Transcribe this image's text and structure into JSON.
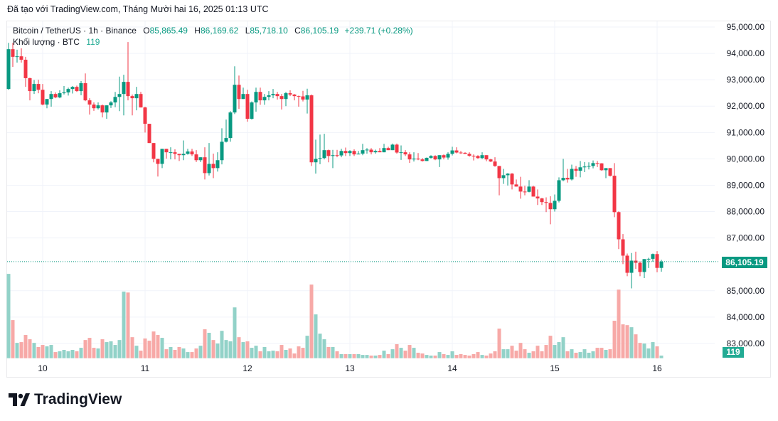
{
  "header": {
    "caption": "Đã tạo với TradingView.com, Tháng Mười hai 16, 2025 01:13 UTC"
  },
  "legend": {
    "symbol": "Bitcoin / TetherUS · 1h · Binance",
    "o_label": "O",
    "o": "85,865.49",
    "h_label": "H",
    "h": "86,169.62",
    "l_label": "L",
    "l": "85,718.10",
    "c_label": "C",
    "c": "86,105.19",
    "change": "+239.71 (+0.28%)",
    "volume_label": "Khối lượng · BTC",
    "volume_value": "119"
  },
  "price_label": "86,105.19",
  "volume_axis_label": "119",
  "logo_text": "TradingView",
  "colors": {
    "up": "#089981",
    "down": "#f23645",
    "vol_up": "#92d2c8",
    "vol_down": "#f7a9a7",
    "grid": "#f0f3fa",
    "last_price": "#089981"
  },
  "chart_data": {
    "type": "candlestick",
    "interval": "1h",
    "grid": true,
    "ylim": [
      82500,
      95000
    ],
    "y_ticks": [
      "95,000.00",
      "94,000.00",
      "93,000.00",
      "92,000.00",
      "91,000.00",
      "90,000.00",
      "89,000.00",
      "88,000.00",
      "87,000.00",
      "85,000.00",
      "84,000.00",
      "83,000.00"
    ],
    "y_tick_values": [
      95000,
      94000,
      93000,
      92000,
      91000,
      90000,
      89000,
      88000,
      87000,
      85000,
      84000,
      83000
    ],
    "x_ticks": [
      {
        "label": "10",
        "index": 8
      },
      {
        "label": "11",
        "index": 32
      },
      {
        "label": "12",
        "index": 56
      },
      {
        "label": "13",
        "index": 80
      },
      {
        "label": "14",
        "index": 104
      },
      {
        "label": "15",
        "index": 128
      },
      {
        "label": "16",
        "index": 152
      }
    ],
    "last_price": 86105.19,
    "candles": [
      [
        92650,
        94400,
        92620,
        94160
      ],
      [
        94160,
        94400,
        93490,
        93870
      ],
      [
        93870,
        94140,
        93650,
        93890
      ],
      [
        93890,
        94190,
        93650,
        93760
      ],
      [
        93760,
        93870,
        92730,
        93060
      ],
      [
        93060,
        93080,
        92220,
        92570
      ],
      [
        92570,
        92990,
        92460,
        92840
      ],
      [
        92840,
        93000,
        92490,
        92620
      ],
      [
        92620,
        92840,
        92030,
        92060
      ],
      [
        92060,
        92270,
        91920,
        92270
      ],
      [
        92270,
        92570,
        91980,
        92460
      ],
      [
        92460,
        92520,
        92300,
        92330
      ],
      [
        92330,
        92600,
        92300,
        92490
      ],
      [
        92490,
        92760,
        92440,
        92520
      ],
      [
        92520,
        92700,
        92400,
        92650
      ],
      [
        92650,
        92760,
        92480,
        92730
      ],
      [
        92730,
        92780,
        92540,
        92570
      ],
      [
        92570,
        92950,
        92410,
        92870
      ],
      [
        92870,
        93240,
        92190,
        92220
      ],
      [
        92220,
        92300,
        91680,
        92060
      ],
      [
        92060,
        92140,
        91820,
        91920
      ],
      [
        91920,
        92140,
        91870,
        92030
      ],
      [
        92030,
        92060,
        91570,
        91760
      ],
      [
        91760,
        92030,
        91520,
        92030
      ],
      [
        92030,
        92190,
        91930,
        92140
      ],
      [
        92140,
        92540,
        91960,
        92350
      ],
      [
        92350,
        93120,
        91810,
        92460
      ],
      [
        92460,
        93190,
        91650,
        92920
      ],
      [
        92920,
        94430,
        92220,
        92380
      ],
      [
        92380,
        92440,
        91650,
        92300
      ],
      [
        92300,
        92730,
        91840,
        92460
      ],
      [
        92460,
        92540,
        91950,
        91950
      ],
      [
        91950,
        91980,
        91000,
        91330
      ],
      [
        91330,
        91330,
        90600,
        90600
      ],
      [
        90600,
        90600,
        89870,
        90000
      ],
      [
        90000,
        90000,
        89330,
        89810
      ],
      [
        89810,
        90380,
        89650,
        90380
      ],
      [
        90380,
        90380,
        90010,
        90250
      ],
      [
        90250,
        90440,
        89980,
        90250
      ],
      [
        90250,
        90360,
        89980,
        90190
      ],
      [
        90190,
        90190,
        89920,
        90140
      ],
      [
        90140,
        90700,
        89950,
        90190
      ],
      [
        90190,
        90380,
        90160,
        90280
      ],
      [
        90280,
        90380,
        90110,
        90170
      ],
      [
        90170,
        90330,
        89880,
        89950
      ],
      [
        89950,
        90060,
        89880,
        90060
      ],
      [
        90060,
        90440,
        89220,
        89460
      ],
      [
        89460,
        90600,
        89370,
        89810
      ],
      [
        89810,
        90200,
        89270,
        89650
      ],
      [
        89650,
        90250,
        89520,
        89950
      ],
      [
        89950,
        91160,
        89790,
        90650
      ],
      [
        90650,
        91490,
        90620,
        90790
      ],
      [
        90790,
        91810,
        90650,
        91760
      ],
      [
        91760,
        93510,
        91700,
        92810
      ],
      [
        92810,
        93160,
        91900,
        92270
      ],
      [
        92270,
        92700,
        92270,
        92460
      ],
      [
        92460,
        92620,
        91410,
        91520
      ],
      [
        91520,
        92180,
        91490,
        92140
      ],
      [
        92140,
        92700,
        91790,
        92540
      ],
      [
        92540,
        92700,
        92050,
        92220
      ],
      [
        92220,
        92460,
        92050,
        92350
      ],
      [
        92350,
        92570,
        92220,
        92410
      ],
      [
        92410,
        92650,
        92300,
        92460
      ],
      [
        92460,
        92540,
        92250,
        92380
      ],
      [
        92380,
        92460,
        91870,
        92270
      ],
      [
        92270,
        92540,
        92000,
        92490
      ],
      [
        92490,
        92600,
        92380,
        92440
      ],
      [
        92440,
        92460,
        92220,
        92380
      ],
      [
        92380,
        92400,
        91980,
        92370
      ],
      [
        92370,
        92580,
        92180,
        92250
      ],
      [
        92250,
        92660,
        91720,
        92410
      ],
      [
        92410,
        92440,
        89730,
        89870
      ],
      [
        89870,
        90730,
        89440,
        90000
      ],
      [
        90000,
        90920,
        89800,
        90030
      ],
      [
        90030,
        90950,
        89980,
        90330
      ],
      [
        90330,
        90350,
        89870,
        90110
      ],
      [
        90110,
        90340,
        89650,
        90140
      ],
      [
        90140,
        90340,
        90060,
        90130
      ],
      [
        90130,
        90380,
        90060,
        90300
      ],
      [
        90300,
        90430,
        90110,
        90220
      ],
      [
        90220,
        90330,
        90110,
        90300
      ],
      [
        90300,
        90360,
        90110,
        90170
      ],
      [
        90170,
        90300,
        90170,
        90200
      ],
      [
        90200,
        90570,
        90140,
        90330
      ],
      [
        90330,
        90410,
        90200,
        90350
      ],
      [
        90350,
        90410,
        90170,
        90250
      ],
      [
        90250,
        90350,
        90200,
        90300
      ],
      [
        90300,
        90410,
        90250,
        90250
      ],
      [
        90250,
        90570,
        90250,
        90410
      ],
      [
        90410,
        90460,
        90330,
        90330
      ],
      [
        90330,
        90580,
        90330,
        90540
      ],
      [
        90540,
        90580,
        90200,
        90240
      ],
      [
        90240,
        90510,
        89960,
        90250
      ],
      [
        90250,
        90330,
        90110,
        90170
      ],
      [
        90170,
        90250,
        89850,
        89980
      ],
      [
        89980,
        90250,
        89900,
        90010
      ],
      [
        90010,
        90220,
        89950,
        89980
      ],
      [
        89980,
        90030,
        89900,
        89920
      ],
      [
        89920,
        90050,
        89920,
        90040
      ],
      [
        90040,
        90140,
        90010,
        90110
      ],
      [
        90110,
        90140,
        89950,
        89980
      ],
      [
        89980,
        90140,
        89690,
        90140
      ],
      [
        90140,
        90170,
        89980,
        90050
      ],
      [
        90050,
        90250,
        89970,
        90190
      ],
      [
        90190,
        90460,
        90130,
        90320
      ],
      [
        90320,
        90440,
        90210,
        90240
      ],
      [
        90240,
        90300,
        90190,
        90230
      ],
      [
        90230,
        90250,
        90190,
        90190
      ],
      [
        90190,
        90250,
        90080,
        90120
      ],
      [
        90120,
        90170,
        89940,
        90110
      ],
      [
        90110,
        90140,
        90000,
        90030
      ],
      [
        90030,
        90250,
        89990,
        90140
      ],
      [
        90140,
        90140,
        89910,
        89980
      ],
      [
        89980,
        90000,
        89880,
        89900
      ],
      [
        89900,
        90060,
        89700,
        89730
      ],
      [
        89730,
        89730,
        88620,
        89270
      ],
      [
        89270,
        89620,
        89050,
        89380
      ],
      [
        89380,
        89460,
        88990,
        89440
      ],
      [
        89440,
        89460,
        88840,
        89030
      ],
      [
        89030,
        89220,
        88950,
        88950
      ],
      [
        88950,
        89320,
        88490,
        88760
      ],
      [
        88760,
        88980,
        88620,
        88750
      ],
      [
        88750,
        89190,
        88730,
        88950
      ],
      [
        88950,
        88980,
        88570,
        88570
      ],
      [
        88570,
        88840,
        88250,
        88500
      ],
      [
        88500,
        88520,
        88250,
        88360
      ],
      [
        88360,
        88540,
        87980,
        88330
      ],
      [
        88330,
        88580,
        87520,
        88090
      ],
      [
        88090,
        88650,
        88000,
        88410
      ],
      [
        88410,
        89300,
        88350,
        89190
      ],
      [
        89190,
        90000,
        89150,
        89280
      ],
      [
        89280,
        89620,
        89100,
        89220
      ],
      [
        89220,
        89780,
        89180,
        89620
      ],
      [
        89620,
        89730,
        89320,
        89550
      ],
      [
        89550,
        89920,
        89300,
        89680
      ],
      [
        89680,
        89880,
        89500,
        89710
      ],
      [
        89710,
        89870,
        89600,
        89730
      ],
      [
        89730,
        89940,
        89640,
        89840
      ],
      [
        89840,
        89920,
        89690,
        89830
      ],
      [
        89830,
        89840,
        89550,
        89570
      ],
      [
        89570,
        89650,
        89270,
        89650
      ],
      [
        89650,
        89650,
        89330,
        89360
      ],
      [
        89360,
        89840,
        87790,
        87980
      ],
      [
        87980,
        88010,
        86580,
        86950
      ],
      [
        86950,
        87150,
        86010,
        86330
      ],
      [
        86330,
        86410,
        85550,
        85680
      ],
      [
        85680,
        86430,
        85090,
        86140
      ],
      [
        86140,
        86480,
        85830,
        86060
      ],
      [
        86060,
        86110,
        85550,
        85710
      ],
      [
        85710,
        86200,
        85480,
        86200
      ],
      [
        86200,
        86250,
        85860,
        86210
      ],
      [
        86210,
        86410,
        86100,
        86390
      ],
      [
        86390,
        86500,
        85700,
        85865.49
      ],
      [
        85865.49,
        86169.62,
        85718.1,
        86105.19
      ]
    ],
    "volumes": [
      3850,
      1740,
      700,
      735,
      1060,
      865,
      700,
      510,
      605,
      540,
      605,
      280,
      315,
      380,
      315,
      380,
      315,
      475,
      830,
      930,
      475,
      445,
      865,
      735,
      770,
      605,
      830,
      3040,
      3000,
      960,
      570,
      345,
      900,
      800,
      1220,
      1060,
      930,
      410,
      510,
      380,
      510,
      445,
      280,
      280,
      445,
      570,
      1320,
      1160,
      830,
      670,
      1250,
      830,
      770,
      2320,
      960,
      735,
      770,
      475,
      570,
      315,
      510,
      315,
      345,
      315,
      605,
      380,
      445,
      215,
      540,
      475,
      1025,
      3360,
      2000,
      1120,
      865,
      510,
      510,
      315,
      185,
      185,
      185,
      185,
      185,
      150,
      150,
      120,
      120,
      150,
      345,
      185,
      410,
      640,
      475,
      345,
      605,
      475,
      250,
      215,
      150,
      120,
      120,
      280,
      185,
      150,
      315,
      150,
      185,
      150,
      120,
      185,
      280,
      150,
      120,
      215,
      315,
      1350,
      410,
      410,
      570,
      345,
      700,
      410,
      250,
      315,
      570,
      315,
      605,
      1025,
      605,
      735,
      960,
      315,
      410,
      250,
      280,
      410,
      250,
      315,
      475,
      475,
      380,
      410,
      1710,
      3130,
      1545,
      1510,
      1415,
      1090,
      700,
      670,
      445,
      735,
      540,
      119
    ]
  }
}
